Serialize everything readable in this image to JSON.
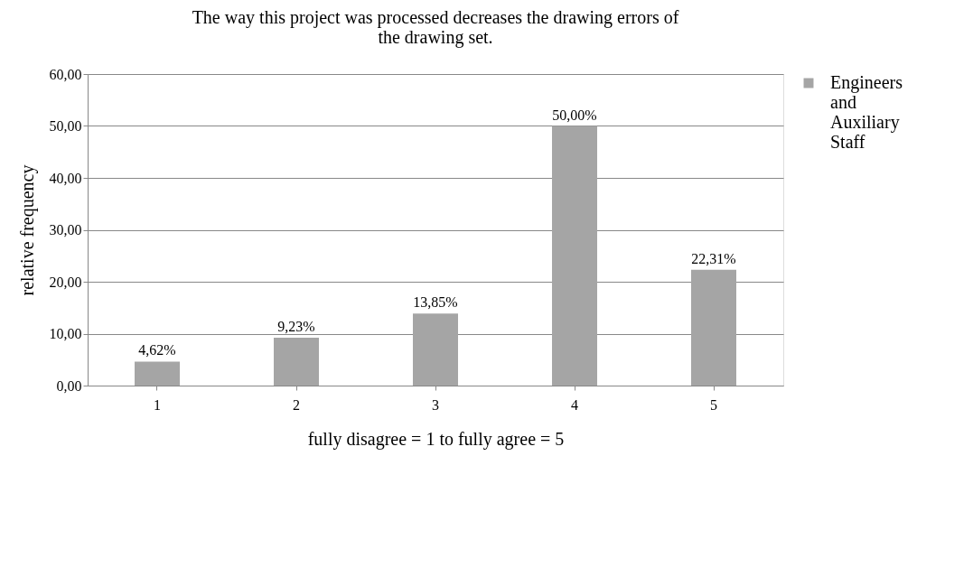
{
  "chart_data": {
    "type": "bar",
    "title": "The way this project was processed decreases the drawing errors of the drawing set.",
    "xlabel": "fully disagree = 1 to fully agree = 5",
    "ylabel": "relative  frequency",
    "categories": [
      "1",
      "2",
      "3",
      "4",
      "5"
    ],
    "series": [
      {
        "name": "Engineers and Auxiliary Staff",
        "color": "#a5a5a5",
        "values": [
          4.62,
          9.23,
          13.85,
          50.0,
          22.31
        ],
        "value_labels": [
          "4,62%",
          "9,23%",
          "13,85%",
          "50,00%",
          "22,31%"
        ]
      }
    ],
    "ylim": [
      0,
      60
    ],
    "yticks": [
      {
        "value": 0,
        "label": "0,00"
      },
      {
        "value": 10,
        "label": "10,00"
      },
      {
        "value": 20,
        "label": "20,00"
      },
      {
        "value": 30,
        "label": "30,00"
      },
      {
        "value": 40,
        "label": "40,00"
      },
      {
        "value": 50,
        "label": "50,00"
      },
      {
        "value": 60,
        "label": "60,00"
      }
    ],
    "grid": "y",
    "legend": "right"
  }
}
